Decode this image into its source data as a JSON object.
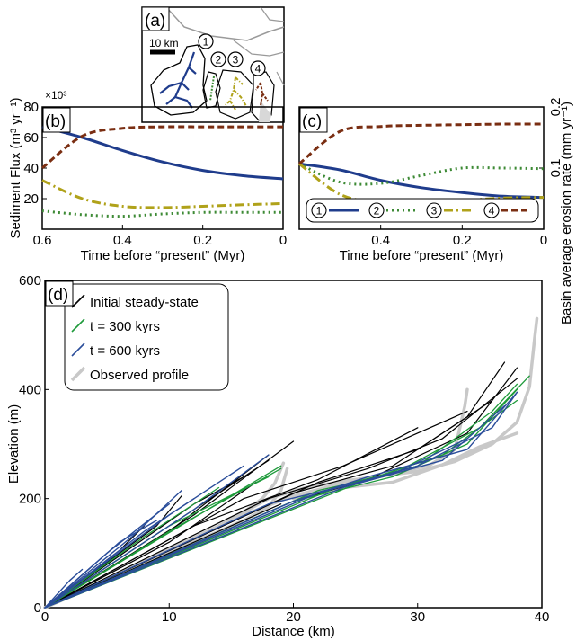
{
  "colors": {
    "river1": "#1f3c8c",
    "river2": "#3d8a35",
    "river3": "#b0a21a",
    "river4": "#7a2e12",
    "initial": "#000000",
    "t300": "#1d9a3a",
    "t600": "#2a4d9a",
    "observed": "#c8c8c8"
  },
  "inset": {
    "label": "(a)",
    "scale_label": "10 km",
    "catchments": [
      "1",
      "2",
      "3",
      "4"
    ]
  },
  "chart_data": [
    {
      "panel": "(b)",
      "type": "line",
      "title": "",
      "xlabel": "Time before “present” (Myr)",
      "ylabel": "Sediment Flux (m³ yr⁻¹)",
      "exponent_label": "×10³",
      "xlim": [
        0.6,
        0
      ],
      "ylim": [
        0,
        80
      ],
      "xticks": [
        "0.6",
        "0.4",
        "0.2",
        "0"
      ],
      "yticks": [
        "20",
        "40",
        "60",
        "80"
      ],
      "x": [
        0.6,
        0.5,
        0.4,
        0.3,
        0.2,
        0.1,
        0.0
      ],
      "series": [
        {
          "name": "1",
          "style": "solid",
          "values": [
            67,
            60,
            51.5,
            44,
            38.5,
            35,
            33
          ]
        },
        {
          "name": "2",
          "style": "dotted",
          "values": [
            12,
            9.5,
            8.5,
            10,
            11,
            11,
            11
          ]
        },
        {
          "name": "3",
          "style": "dashdot",
          "values": [
            32,
            20,
            15,
            14.2,
            15,
            16,
            16.8
          ]
        },
        {
          "name": "4",
          "style": "dashed",
          "values": [
            40,
            61,
            66,
            67,
            67,
            67,
            67
          ]
        }
      ]
    },
    {
      "panel": "(c)",
      "type": "line",
      "title": "",
      "xlabel": "Time before “present” (Myr)",
      "ylabel": "Basin average erosion rate (mm yr⁻¹)",
      "xlim": [
        0.6,
        0
      ],
      "ylim": [
        0,
        0.2
      ],
      "xticks": [
        "0.4",
        "0.2",
        "0"
      ],
      "yticks": [
        "0.1",
        "0.2"
      ],
      "x": [
        0.6,
        0.5,
        0.4,
        0.3,
        0.2,
        0.1,
        0.0
      ],
      "series": [
        {
          "name": "1",
          "style": "solid",
          "values": [
            0.107,
            0.097,
            0.08,
            0.068,
            0.06,
            0.054,
            0.052
          ]
        },
        {
          "name": "2",
          "style": "dotted",
          "values": [
            0.107,
            0.077,
            0.075,
            0.088,
            0.1,
            0.1,
            0.099
          ]
        },
        {
          "name": "3",
          "style": "dashdot",
          "values": [
            0.107,
            0.057,
            0.044,
            0.043,
            0.047,
            0.051,
            0.052
          ]
        },
        {
          "name": "4",
          "style": "dashed",
          "values": [
            0.107,
            0.16,
            0.168,
            0.17,
            0.171,
            0.172,
            0.172
          ]
        }
      ],
      "legend": [
        "1",
        "2",
        "3",
        "4"
      ],
      "legend_position": "bottom"
    },
    {
      "panel": "(d)",
      "type": "line",
      "title": "",
      "xlabel": "Distance (km)",
      "ylabel": "Elevation (m)",
      "xlim": [
        0,
        40
      ],
      "ylim": [
        0,
        600
      ],
      "xticks": [
        "0",
        "10",
        "20",
        "30",
        "40"
      ],
      "yticks": [
        "0",
        "200",
        "400",
        "600"
      ],
      "legend": [
        "Initial steady-state",
        "t = 300 kyrs",
        "t = 600 kyrs",
        "Observed profile"
      ],
      "legend_position": "top-left",
      "series": [
        {
          "name": "Observed profile",
          "kind": "observed",
          "lines": [
            [
              [
                0,
                0
              ],
              [
                4,
                40
              ],
              [
                8,
                80
              ],
              [
                12,
                120
              ],
              [
                16,
                160
              ],
              [
                18,
                185
              ],
              [
                19,
                215
              ],
              [
                19.5,
                255
              ]
            ],
            [
              [
                0,
                0
              ],
              [
                6,
                60
              ],
              [
                10,
                100
              ],
              [
                14,
                150
              ],
              [
                16,
                175
              ],
              [
                17.5,
                200
              ],
              [
                18.5,
                228
              ],
              [
                19.2,
                265
              ]
            ],
            [
              [
                0,
                0
              ],
              [
                8,
                85
              ],
              [
                14,
                150
              ],
              [
                18,
                200
              ],
              [
                21,
                220
              ],
              [
                25,
                235
              ],
              [
                30,
                250
              ],
              [
                33,
                268
              ],
              [
                36,
                300
              ],
              [
                38,
                340
              ],
              [
                39,
                405
              ],
              [
                39.4,
                490
              ],
              [
                39.6,
                530
              ]
            ],
            [
              [
                0,
                0
              ],
              [
                10,
                105
              ],
              [
                16,
                170
              ],
              [
                20,
                205
              ],
              [
                24,
                228
              ],
              [
                28,
                245
              ],
              [
                31,
                262
              ],
              [
                33,
                290
              ],
              [
                33.8,
                370
              ],
              [
                34,
                400
              ]
            ],
            [
              [
                20,
                200
              ],
              [
                24,
                220
              ],
              [
                28,
                230
              ],
              [
                32,
                262
              ],
              [
                35,
                295
              ],
              [
                38,
                320
              ]
            ],
            [
              [
                20,
                200
              ],
              [
                22,
                210
              ],
              [
                23,
                215
              ],
              [
                24,
                225
              ],
              [
                24.6,
                235
              ]
            ]
          ]
        },
        {
          "name": "Initial steady-state",
          "kind": "initial",
          "lines": [
            [
              [
                0,
                0
              ],
              [
                10,
                100
              ],
              [
                19,
                190
              ]
            ],
            [
              [
                0,
                0
              ],
              [
                10,
                120
              ],
              [
                17,
                230
              ]
            ],
            [
              [
                0,
                0
              ],
              [
                10,
                140
              ],
              [
                18,
                280
              ]
            ],
            [
              [
                0,
                0
              ],
              [
                12,
                170
              ],
              [
                20,
                305
              ]
            ],
            [
              [
                0,
                0
              ],
              [
                12,
                190
              ],
              [
                16,
                240
              ]
            ],
            [
              [
                0,
                0
              ],
              [
                6,
                105
              ],
              [
                8,
                150
              ]
            ],
            [
              [
                0,
                0
              ],
              [
                9,
                150
              ],
              [
                11,
                205
              ]
            ],
            [
              [
                0,
                0
              ],
              [
                2,
                40
              ],
              [
                4,
                80
              ]
            ],
            [
              [
                0,
                0
              ],
              [
                14,
                210
              ],
              [
                18,
                270
              ]
            ],
            [
              [
                0,
                0
              ],
              [
                20,
                195
              ],
              [
                26,
                235
              ],
              [
                34,
                320
              ],
              [
                38,
                440
              ]
            ],
            [
              [
                0,
                0
              ],
              [
                20,
                210
              ],
              [
                28,
                260
              ],
              [
                34,
                350
              ],
              [
                37,
                450
              ]
            ],
            [
              [
                0,
                0
              ],
              [
                18,
                200
              ],
              [
                26,
                255
              ],
              [
                32,
                310
              ],
              [
                38,
                420
              ]
            ],
            [
              [
                0,
                0
              ],
              [
                22,
                230
              ],
              [
                30,
                290
              ],
              [
                36,
                380
              ]
            ],
            [
              [
                0,
                0
              ],
              [
                16,
                200
              ],
              [
                24,
                260
              ],
              [
                34,
                360
              ]
            ],
            [
              [
                0,
                0
              ],
              [
                12,
                150
              ],
              [
                22,
                235
              ],
              [
                30,
                330
              ]
            ]
          ]
        },
        {
          "name": "t = 300 kyrs",
          "kind": "t300",
          "lines": [
            [
              [
                0,
                0
              ],
              [
                10,
                140
              ],
              [
                19,
                255
              ]
            ],
            [
              [
                0,
                0
              ],
              [
                10,
                150
              ],
              [
                18,
                240
              ]
            ],
            [
              [
                0,
                0
              ],
              [
                12,
                165
              ],
              [
                19,
                260
              ]
            ],
            [
              [
                0,
                0
              ],
              [
                8,
                130
              ],
              [
                14,
                220
              ]
            ],
            [
              [
                0,
                0
              ],
              [
                20,
                195
              ],
              [
                28,
                240
              ],
              [
                34,
                300
              ],
              [
                38,
                400
              ]
            ],
            [
              [
                0,
                0
              ],
              [
                22,
                215
              ],
              [
                28,
                245
              ],
              [
                35,
                330
              ],
              [
                39,
                425
              ]
            ],
            [
              [
                0,
                0
              ],
              [
                24,
                225
              ],
              [
                30,
                260
              ],
              [
                36,
                360
              ],
              [
                38,
                410
              ]
            ],
            [
              [
                0,
                0
              ],
              [
                26,
                235
              ],
              [
                32,
                280
              ],
              [
                38,
                380
              ]
            ]
          ]
        },
        {
          "name": "t = 600 kyrs",
          "kind": "t600",
          "lines": [
            [
              [
                0,
                0
              ],
              [
                5,
                100
              ],
              [
                10,
                190
              ]
            ],
            [
              [
                0,
                0
              ],
              [
                7,
                130
              ],
              [
                11,
                215
              ]
            ],
            [
              [
                0,
                0
              ],
              [
                6,
                120
              ],
              [
                9,
                160
              ]
            ],
            [
              [
                0,
                0
              ],
              [
                10,
                170
              ],
              [
                16,
                260
              ]
            ],
            [
              [
                0,
                0
              ],
              [
                12,
                180
              ],
              [
                18,
                280
              ]
            ],
            [
              [
                0,
                0
              ],
              [
                8,
                140
              ],
              [
                12,
                200
              ]
            ],
            [
              [
                0,
                0
              ],
              [
                2,
                50
              ],
              [
                3,
                70
              ]
            ],
            [
              [
                0,
                0
              ],
              [
                20,
                195
              ],
              [
                26,
                240
              ],
              [
                34,
                290
              ],
              [
                38,
                395
              ]
            ],
            [
              [
                0,
                0
              ],
              [
                22,
                210
              ],
              [
                30,
                260
              ],
              [
                36,
                330
              ],
              [
                38,
                395
              ]
            ],
            [
              [
                0,
                0
              ],
              [
                24,
                220
              ],
              [
                32,
                270
              ],
              [
                37,
                370
              ]
            ],
            [
              [
                0,
                0
              ],
              [
                18,
                190
              ],
              [
                28,
                245
              ],
              [
                34,
                310
              ]
            ]
          ]
        }
      ]
    }
  ]
}
